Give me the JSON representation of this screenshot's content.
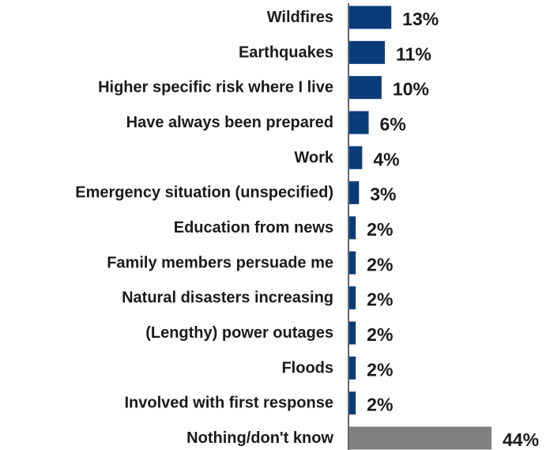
{
  "chart_data": {
    "type": "bar",
    "orientation": "horizontal",
    "title": "",
    "xlabel": "",
    "ylabel": "",
    "categories": [
      "Wildfires",
      "Earthquakes",
      "Higher specific risk where I live",
      "Have always been prepared",
      "Work",
      "Emergency situation (unspecified)",
      "Education from news",
      "Family members persuade me",
      "Natural disasters increasing",
      "(Lengthy) power outages",
      "Floods",
      "Involved with first response",
      "Nothing/don't know"
    ],
    "values": [
      13,
      11,
      10,
      6,
      4,
      3,
      2,
      2,
      2,
      2,
      2,
      2,
      44
    ],
    "value_labels": [
      "13%",
      "11%",
      "10%",
      "6%",
      "4%",
      "3%",
      "2%",
      "2%",
      "2%",
      "2%",
      "2%",
      "2%",
      "44%"
    ],
    "unit": "%",
    "xlim": [
      0,
      44
    ],
    "grid": false,
    "legend": "none",
    "colors": {
      "default_bar": "#0b3c7a",
      "highlight_bar": "#808080",
      "axis": "#333333",
      "text": "#1a1a1a"
    },
    "highlight_categories": [
      "Nothing/don't know"
    ]
  }
}
